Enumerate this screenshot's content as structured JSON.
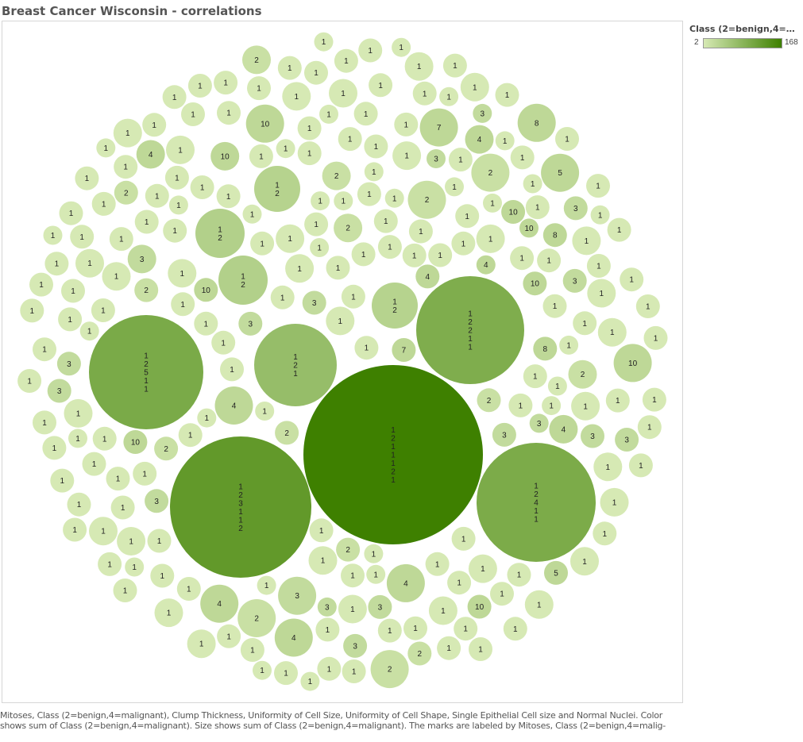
{
  "title": "Breast Cancer Wisconsin - correlations",
  "legend": {
    "title": "Class (2=benign,4=mali..",
    "min_label": "2",
    "max_label": "168",
    "color_min": "#d6e9b4",
    "color_max": "#3e8000"
  },
  "caption": "Mitoses, Class (2=benign,4=malignant), Clump Thickness, Uniformity of Cell Size, Uniformity of Cell Shape, Single Epithelial Cell size and Normal Nuclei.  Color shows sum of Class (2=benign,4=malignant). Size shows sum of Class (2=benign,4=malignant).  The marks are labeled by Mitoses, Class (2=benign,4=malig-",
  "chart_data": {
    "type": "packed-bubble",
    "color_measure": "sum of Class (2=benign,4=malignant)",
    "size_measure": "sum of Class (2=benign,4=malignant)",
    "large_bubbles": [
      {
        "label": [
          "1",
          "2",
          "1",
          "1",
          "1",
          "2",
          "1"
        ],
        "value": 168
      },
      {
        "label": [
          "1",
          "2",
          "3",
          "1",
          "1",
          "2"
        ],
        "value": 104
      },
      {
        "label": [
          "1",
          "2",
          "5",
          "1",
          "1"
        ],
        "value": 68
      },
      {
        "label": [
          "1",
          "2",
          "4",
          "1",
          "1"
        ],
        "value": 66
      },
      {
        "label": [
          "1",
          "2",
          "2",
          "1",
          "1"
        ],
        "value": 62
      },
      {
        "label": [
          "1",
          "2",
          "1"
        ],
        "value": 36
      },
      {
        "label": [
          "1",
          "2"
        ],
        "value": 14
      },
      {
        "label": [
          "1",
          "2"
        ],
        "value": 14
      },
      {
        "label": [
          "1",
          "2"
        ],
        "value": 12
      },
      {
        "label": [
          "1",
          "2"
        ],
        "value": 12
      }
    ],
    "small_bubble_labels": [
      "10",
      "8",
      "7",
      "5",
      "4",
      "10",
      "4",
      "4",
      "3",
      "4",
      "2",
      "2",
      "2",
      "2",
      "1",
      "2",
      "10",
      "2",
      "4",
      "1",
      "1",
      "2",
      "1",
      "1",
      "1",
      "1",
      "1",
      "1",
      "1",
      "3",
      "2",
      "4",
      "1",
      "4",
      "1",
      "1",
      "1",
      "1",
      "1",
      "1",
      "1",
      "1",
      "1",
      "1",
      "1",
      "1",
      "1",
      "1",
      "1",
      "1",
      "1",
      "1",
      "1",
      "1",
      "1",
      "1",
      "1",
      "1",
      "2",
      "3",
      "10",
      "3",
      "1",
      "1",
      "1",
      "1",
      "1",
      "1",
      "1",
      "1",
      "1",
      "1",
      "1",
      "1",
      "1",
      "1",
      "1",
      "1",
      "1",
      "3",
      "10",
      "3",
      "1",
      "1",
      "1",
      "1",
      "1",
      "1",
      "1",
      "1",
      "1",
      "1",
      "1",
      "1",
      "1",
      "1",
      "1",
      "1",
      "3",
      "10",
      "3",
      "1",
      "1",
      "1",
      "1",
      "1",
      "1",
      "1",
      "1",
      "1",
      "1",
      "1",
      "1",
      "1",
      "1",
      "1",
      "1",
      "1",
      "2",
      "8",
      "3",
      "2",
      "1",
      "1",
      "1",
      "1",
      "1",
      "1",
      "1",
      "1",
      "1",
      "1",
      "1",
      "1",
      "1",
      "1",
      "1",
      "1",
      "1",
      "2",
      "3",
      "8",
      "2",
      "1",
      "1",
      "1",
      "1",
      "1",
      "1",
      "1",
      "1",
      "1",
      "1",
      "1",
      "1",
      "1",
      "1",
      "1",
      "2",
      "4",
      "10",
      "3",
      "1",
      "1",
      "1",
      "1",
      "1",
      "1",
      "1",
      "1",
      "1",
      "1",
      "1",
      "1",
      "1",
      "1",
      "1",
      "3",
      "10",
      "5",
      "3",
      "1",
      "1",
      "1",
      "1",
      "1",
      "1",
      "1",
      "1",
      "1",
      "1",
      "1",
      "1",
      "7",
      "3",
      "2",
      "1",
      "1",
      "1",
      "1",
      "1",
      "1",
      "1",
      "1",
      "3",
      "4",
      "10",
      "3",
      "1",
      "1",
      "1",
      "1",
      "1",
      "1",
      "1",
      "1",
      "1",
      "1",
      "1",
      "1",
      "1",
      "1",
      "1",
      "1",
      "1",
      "1",
      "1",
      "3",
      "3",
      "1",
      "1",
      "1",
      "1",
      "1",
      "1",
      "1",
      "1",
      "1",
      "1",
      "1",
      "1",
      "1",
      "3",
      "10",
      "10",
      "3",
      "1",
      "1",
      "1",
      "1",
      "1",
      "1",
      "1",
      "1",
      "3",
      "7",
      "2",
      "1",
      "1",
      "1",
      "1",
      "1",
      "1",
      "1",
      "1",
      "1",
      "1",
      "1",
      "1",
      "1",
      "2",
      "7",
      "1",
      "1",
      "1",
      "1",
      "1",
      "1",
      "1",
      "1",
      "1",
      "1",
      "1",
      "3",
      "8",
      "3",
      "2",
      "1",
      "1",
      "1",
      "1",
      "1",
      "1",
      "1",
      "1",
      "1",
      "3",
      "3",
      "1",
      "1",
      "1",
      "1",
      "1",
      "1",
      "1",
      "1",
      "8",
      "2",
      "1",
      "1",
      "1",
      "1",
      "1",
      "1",
      "1",
      "3",
      "3",
      "1",
      "1",
      "1",
      "1",
      "1",
      "1",
      "1",
      "1",
      "1",
      "1",
      "4",
      "4",
      "2",
      "1",
      "1",
      "1",
      "1",
      "1",
      "1",
      "1",
      "1",
      "1",
      "1",
      "1",
      "1",
      "1",
      "1",
      "1",
      "1",
      "1",
      "1",
      "7",
      "2",
      "2",
      "2",
      "1",
      "1",
      "1",
      "1",
      "1",
      "1",
      "1",
      "1",
      "1",
      "1",
      "2",
      "3",
      "5",
      "5",
      "8",
      "10",
      "6",
      "6",
      "3",
      "2",
      "1",
      "1",
      "1",
      "1",
      "2",
      "1",
      "2",
      "3",
      "7",
      "10",
      "6",
      "8",
      "7",
      "3",
      "5",
      "10"
    ]
  }
}
